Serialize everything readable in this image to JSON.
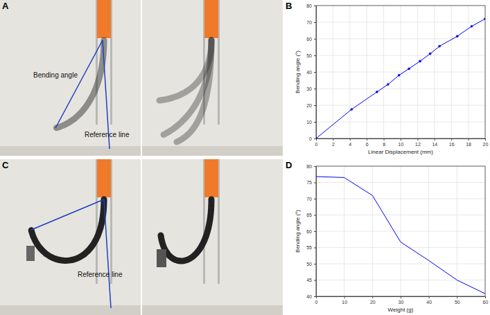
{
  "panels": {
    "labels": [
      "A",
      "B",
      "C",
      "D"
    ],
    "photo_a": {
      "annotations": [
        "Bending angle",
        "Reference line"
      ]
    },
    "photo_c": {
      "annotations": [
        "Reference line"
      ]
    }
  },
  "chart_data": [
    {
      "type": "line",
      "x_label": "Linear Displacement (mm)",
      "y_label": "Bending angle (°)",
      "x": [
        0,
        4.2,
        7.2,
        8.5,
        9.8,
        11,
        12.3,
        13.5,
        14.6,
        16.7,
        18.4,
        20
      ],
      "values": [
        0,
        17.5,
        28,
        32.5,
        38,
        42,
        46.5,
        51,
        55.5,
        61.5,
        67.5,
        72
      ],
      "color": "#0000ff",
      "marker": "circle",
      "grid": true,
      "xlim": [
        0,
        20
      ],
      "xticks": [
        0,
        2,
        4,
        6,
        8,
        10,
        12,
        14,
        16,
        18,
        20
      ],
      "ylim": [
        0,
        80
      ],
      "yticks": [
        0,
        10,
        20,
        30,
        40,
        50,
        60,
        70,
        80
      ]
    },
    {
      "type": "line",
      "x_label": "Weight (g)",
      "y_label": "Bending angle (°)",
      "x": [
        0,
        10,
        20,
        30,
        40,
        50,
        60
      ],
      "values": [
        76.8,
        76.5,
        71,
        56.7,
        51,
        45,
        40.8
      ],
      "color": "#0000ff",
      "marker": "none",
      "grid": true,
      "xlim": [
        0,
        60
      ],
      "xticks": [
        0,
        10,
        20,
        30,
        40,
        50,
        60
      ],
      "ylim": [
        40,
        80
      ],
      "yticks": [
        40,
        45,
        50,
        55,
        60,
        65,
        70,
        75,
        80
      ]
    }
  ]
}
